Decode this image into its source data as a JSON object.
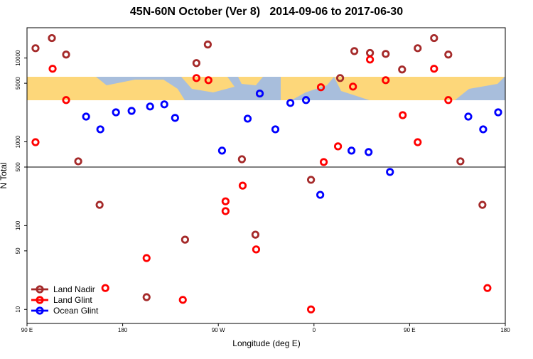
{
  "chart_data": {
    "type": "scatter",
    "title": "45N-60N October (Ver 8)   2014-09-06 to 2017-06-30",
    "xlabel": "Longitude (deg E)",
    "ylabel": "N Total",
    "xlim": [
      90,
      540
    ],
    "ylim": [
      6.8,
      23000
    ],
    "ylog": true,
    "xticks": [
      {
        "value": 90,
        "label": "90 E"
      },
      {
        "value": 180,
        "label": "180"
      },
      {
        "value": 270,
        "label": "90 W"
      },
      {
        "value": 360,
        "label": "0"
      },
      {
        "value": 450,
        "label": "90 E"
      },
      {
        "value": 540,
        "label": "180"
      }
    ],
    "yticks": [
      10,
      50,
      100,
      500,
      1000,
      5000,
      10000
    ],
    "hline": 500,
    "legend": "bottom-left",
    "series": [
      {
        "name": "Land Nadir",
        "color": "#a52a2a",
        "x": [
          98.0,
          113.4,
          126.8,
          138.2,
          158.3,
          202.5,
          238.7,
          249.4,
          260.1,
          292.2,
          304.9,
          357.2,
          384.6,
          398.0,
          412.7,
          427.5,
          442.9,
          457.6,
          473.0,
          486.4,
          497.8,
          518.5
        ],
        "values": [
          13100,
          17300,
          11000,
          585,
          177,
          14,
          68,
          8700,
          14500,
          620,
          78,
          352,
          5770,
          12100,
          11500,
          11200,
          7300,
          13100,
          17300,
          11000,
          585,
          177
        ]
      },
      {
        "name": "Land Glint",
        "color": "#ff0000",
        "x": [
          98.0,
          114.1,
          126.8,
          163.7,
          202.5,
          236.6,
          249.4,
          260.7,
          276.8,
          276.8,
          292.9,
          305.6,
          357.2,
          366.5,
          369.2,
          382.6,
          396.7,
          412.7,
          427.5,
          443.5,
          457.6,
          473.0,
          486.4,
          523.2
        ],
        "values": [
          990,
          7450,
          3150,
          18,
          41,
          13,
          5770,
          5440,
          195,
          149,
          300,
          52,
          10,
          4480,
          574,
          883,
          4560,
          9590,
          5440,
          2080,
          990,
          7450,
          3150,
          18
        ]
      },
      {
        "name": "Ocean Glint",
        "color": "#0000ff",
        "x": [
          145.6,
          159.0,
          173.7,
          188.4,
          205.8,
          219.2,
          229.3,
          273.5,
          297.6,
          309.0,
          323.7,
          337.8,
          352.5,
          365.9,
          395.3,
          411.4,
          431.5,
          505.2,
          519.2,
          533.3
        ],
        "values": [
          2000,
          1410,
          2250,
          2340,
          2640,
          2800,
          1930,
          785,
          1890,
          3770,
          1410,
          2910,
          3150,
          233,
          785,
          755,
          437,
          2000,
          1410,
          2250
        ]
      }
    ]
  }
}
